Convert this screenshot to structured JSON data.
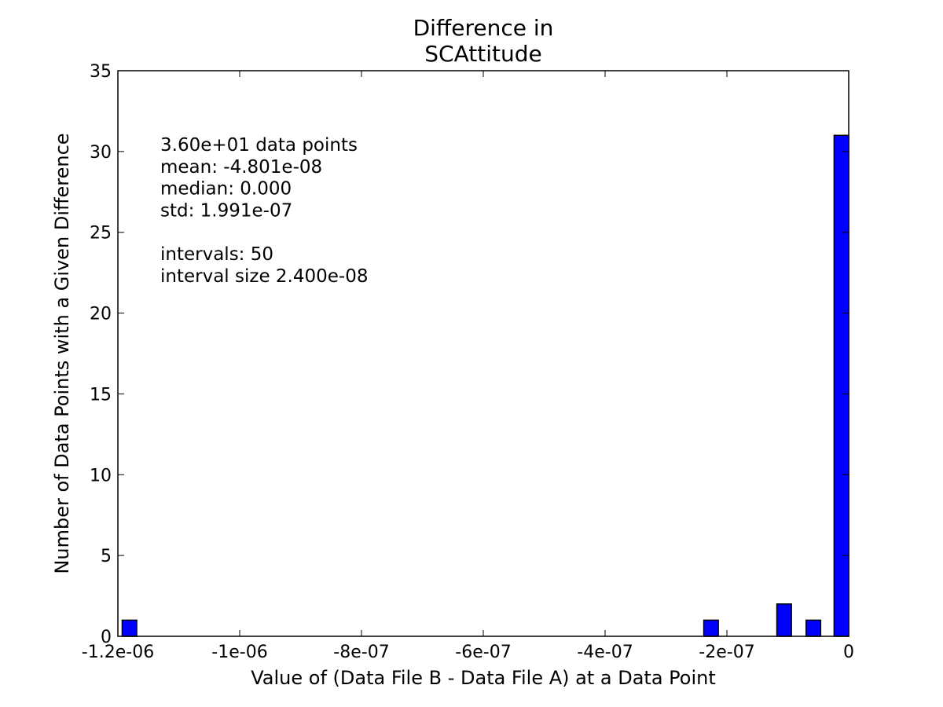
{
  "chart_data": {
    "type": "bar",
    "title": [
      "Difference in",
      "SCAttitude"
    ],
    "xlabel": "Value of (Data File B - Data File A) at a Data Point",
    "ylabel": "Number of Data Points with a Given Difference",
    "xlim": [
      -1.2e-06,
      0
    ],
    "ylim": [
      0,
      35
    ],
    "x_ticks": [
      -1.2e-06,
      -1e-06,
      -8e-07,
      -6e-07,
      -4e-07,
      -2e-07,
      0
    ],
    "x_tick_labels": [
      "-1.2e-06",
      "-1e-06",
      "-8e-07",
      "-6e-07",
      "-4e-07",
      "-2e-07",
      "0"
    ],
    "y_ticks": [
      0,
      5,
      10,
      15,
      20,
      25,
      30,
      35
    ],
    "y_tick_labels": [
      "0",
      "5",
      "10",
      "15",
      "20",
      "25",
      "30",
      "35"
    ],
    "bar_color": "#0000ff",
    "bars": [
      {
        "x0": -1.193e-06,
        "x1": -1.169e-06,
        "value": 1
      },
      {
        "x0": -2.38e-07,
        "x1": -2.14e-07,
        "value": 1
      },
      {
        "x0": -1.18e-07,
        "x1": -9.4e-08,
        "value": 2
      },
      {
        "x0": -7e-08,
        "x1": -4.6e-08,
        "value": 1
      },
      {
        "x0": -2.4e-08,
        "x1": 0,
        "value": 31
      }
    ],
    "annotation": [
      "3.60e+01 data points",
      "mean: -4.801e-08",
      "median: 0.000",
      "std: 1.991e-07",
      "",
      "intervals: 50",
      "interval size 2.400e-08"
    ]
  }
}
